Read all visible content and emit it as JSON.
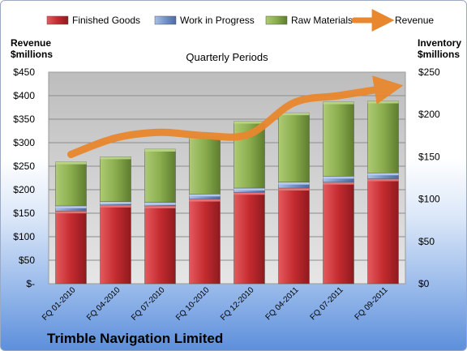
{
  "chart_data": {
    "type": "bar",
    "title": "Quarterly Periods",
    "company": "Trimble Navigation Limited",
    "left_axis": {
      "label_line1": "Revenue",
      "label_line2": "$millions",
      "range": [
        0,
        450
      ],
      "step": 50,
      "ticks": [
        "$-",
        "$50",
        "$100",
        "$150",
        "$200",
        "$250",
        "$300",
        "$350",
        "$400",
        "$450"
      ]
    },
    "right_axis": {
      "label_line1": "Inventory",
      "label_line2": "$millions",
      "range": [
        0,
        250
      ],
      "step": 50,
      "ticks": [
        "$0",
        "$50",
        "$100",
        "$150",
        "$200",
        "$250"
      ]
    },
    "categories": [
      "FQ 01-2010",
      "FQ 04-2010",
      "FQ 07-2010",
      "FQ 10-2010",
      "FQ 12-2010",
      "FQ 04-2011",
      "FQ 07-2011",
      "FQ 09-2011"
    ],
    "legend_position": "top",
    "grid": true,
    "series": [
      {
        "name": "Finished Goods",
        "type": "stacked-bar",
        "axis": "right",
        "color": "#c0282d",
        "values": [
          86,
          93,
          92,
          100,
          108,
          113,
          120,
          124
        ]
      },
      {
        "name": "Work in Progress",
        "type": "stacked-bar",
        "axis": "right",
        "color": "#6f8fc4",
        "values": [
          6,
          4,
          4,
          6,
          5,
          7,
          7,
          7
        ]
      },
      {
        "name": "Raw Materials",
        "type": "stacked-bar",
        "axis": "right",
        "color": "#8db051",
        "values": [
          52,
          53,
          63,
          68,
          79,
          82,
          88,
          85
        ]
      },
      {
        "name": "Revenue",
        "type": "line",
        "axis": "left",
        "color": "#e8872e",
        "values": [
          275,
          310,
          322,
          315,
          318,
          385,
          400,
          415
        ]
      }
    ]
  }
}
